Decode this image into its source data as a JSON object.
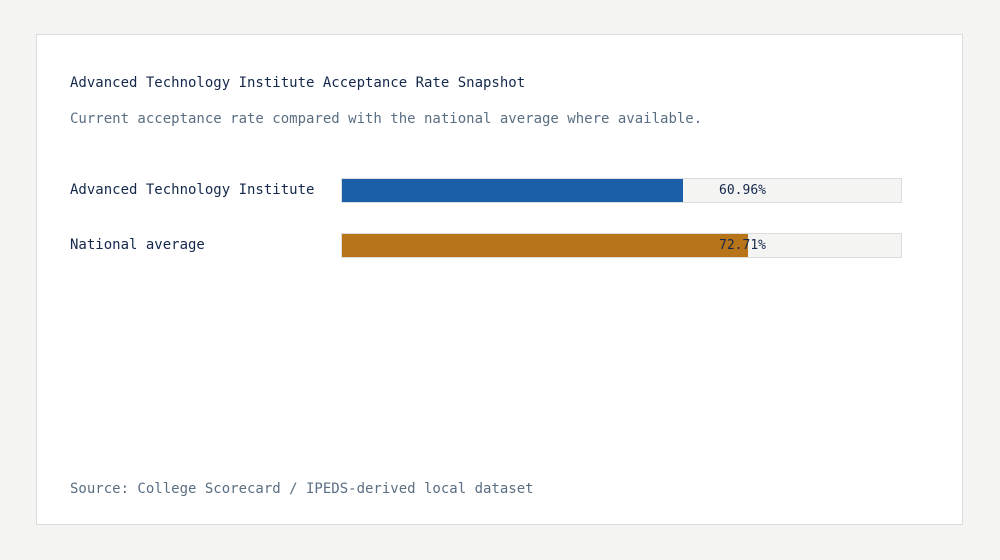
{
  "chart_data": {
    "type": "bar",
    "orientation": "horizontal",
    "title": "Advanced Technology Institute Acceptance Rate Snapshot",
    "subtitle": "Current acceptance rate compared with the national average where available.",
    "categories": [
      "Advanced Technology Institute",
      "National average"
    ],
    "values": [
      60.96,
      72.71
    ],
    "value_labels": [
      "60.96%",
      "72.71%"
    ],
    "colors": [
      "#1a5fa8",
      "#b87418"
    ],
    "xlim": [
      0,
      100
    ],
    "unit": "%",
    "grid": false,
    "source": "Source: College Scorecard / IPEDS-derived local dataset"
  }
}
